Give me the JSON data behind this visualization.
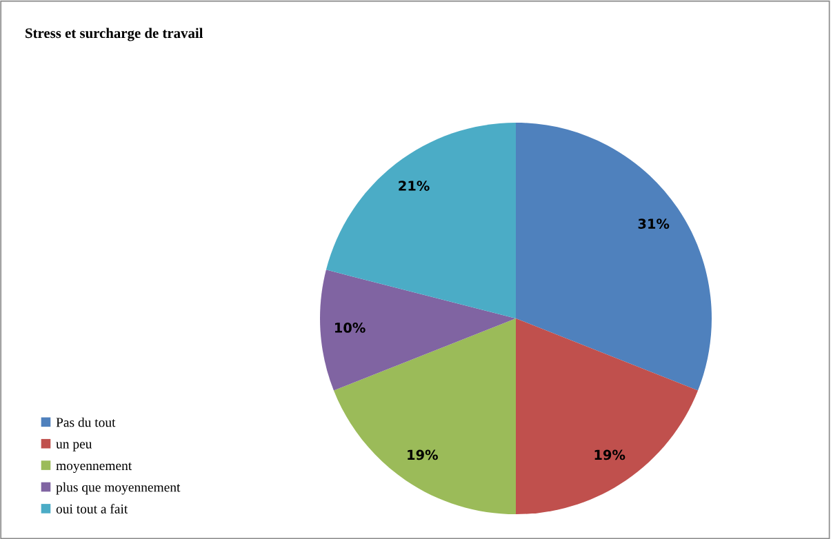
{
  "chart_data": {
    "type": "pie",
    "title": "Stress et surcharge de travail",
    "categories": [
      "Pas du tout",
      "un peu",
      "moyennement",
      "plus que moyennement",
      "oui tout a fait"
    ],
    "values": [
      31,
      19,
      19,
      10,
      21
    ],
    "colors": [
      "#4f81bd",
      "#c0504d",
      "#9bbb59",
      "#8064a2",
      "#4bacc6"
    ],
    "value_labels": [
      "31%",
      "19%",
      "19%",
      "10%",
      "21%"
    ],
    "legend": "bottom left"
  }
}
